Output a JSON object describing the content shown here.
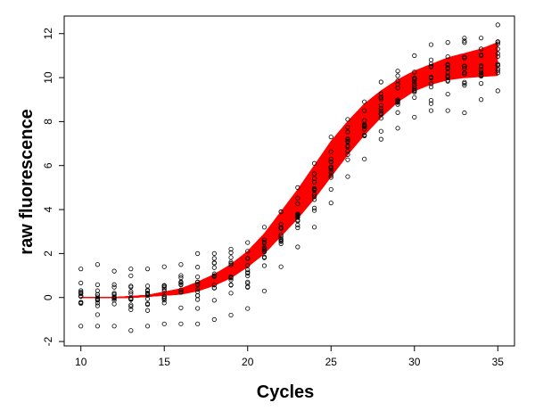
{
  "chart_data": {
    "type": "scatter",
    "title": "",
    "xlabel": "Cycles",
    "ylabel": "raw fluorescence",
    "xlim": [
      9.0,
      36.0
    ],
    "ylim": [
      -2.2,
      12.8
    ],
    "x_ticks": [
      10,
      15,
      20,
      25,
      30,
      35
    ],
    "y_ticks": [
      -2,
      0,
      2,
      4,
      6,
      8,
      10,
      12
    ],
    "grid": false,
    "legend": "none",
    "colors": {
      "curves": "#ff0000",
      "points": "#000000"
    },
    "series": [
      {
        "type": "scatter",
        "marker": "open-circle",
        "points_per_cycle": 12,
        "x": [
          10,
          11,
          12,
          13,
          14,
          15,
          16,
          17,
          18,
          19,
          20,
          21,
          22,
          23,
          24,
          25,
          26,
          27,
          28,
          29,
          30,
          31,
          32,
          33,
          34,
          35
        ],
        "min": [
          -1.3,
          -1.3,
          -1.3,
          -1.5,
          -1.3,
          -1.2,
          -1.2,
          -1.2,
          -1.0,
          -0.8,
          -0.5,
          0.3,
          1.4,
          2.3,
          3.2,
          4.3,
          5.5,
          6.3,
          7.2,
          7.7,
          8.2,
          8.5,
          8.5,
          8.4,
          9.0,
          9.4
        ],
        "max": [
          1.3,
          1.5,
          1.2,
          1.3,
          1.3,
          1.4,
          1.5,
          2.0,
          2.0,
          2.2,
          2.5,
          3.2,
          3.9,
          5.0,
          6.1,
          7.3,
          8.1,
          8.9,
          9.8,
          10.3,
          11.0,
          11.5,
          11.6,
          11.8,
          11.8,
          12.4
        ],
        "center": [
          0.0,
          0.0,
          0.0,
          0.05,
          0.1,
          0.2,
          0.3,
          0.5,
          0.8,
          1.1,
          1.5,
          2.1,
          2.9,
          3.8,
          4.8,
          5.8,
          6.8,
          7.7,
          8.5,
          9.2,
          9.8,
          10.1,
          10.3,
          10.5,
          10.6,
          10.7
        ]
      },
      {
        "type": "line",
        "count": 50,
        "x": [
          10,
          11,
          12,
          13,
          14,
          15,
          16,
          17,
          18,
          19,
          20,
          21,
          22,
          23,
          24,
          25,
          26,
          27,
          28,
          29,
          30,
          31,
          32,
          33,
          34,
          35
        ],
        "min": [
          0,
          0,
          0,
          0,
          0.05,
          0.1,
          0.15,
          0.3,
          0.55,
          0.9,
          1.4,
          2.0,
          2.8,
          3.6,
          4.5,
          5.5,
          6.5,
          7.4,
          8.2,
          8.9,
          9.4,
          9.7,
          9.9,
          10.0,
          10.05,
          10.1
        ],
        "max": [
          0,
          0,
          0,
          0.05,
          0.1,
          0.25,
          0.4,
          0.7,
          1.05,
          1.5,
          2.1,
          2.9,
          3.9,
          4.9,
          6.0,
          7.1,
          8.0,
          8.8,
          9.4,
          9.9,
          10.3,
          10.6,
          10.9,
          11.1,
          11.3,
          11.6
        ]
      }
    ]
  }
}
